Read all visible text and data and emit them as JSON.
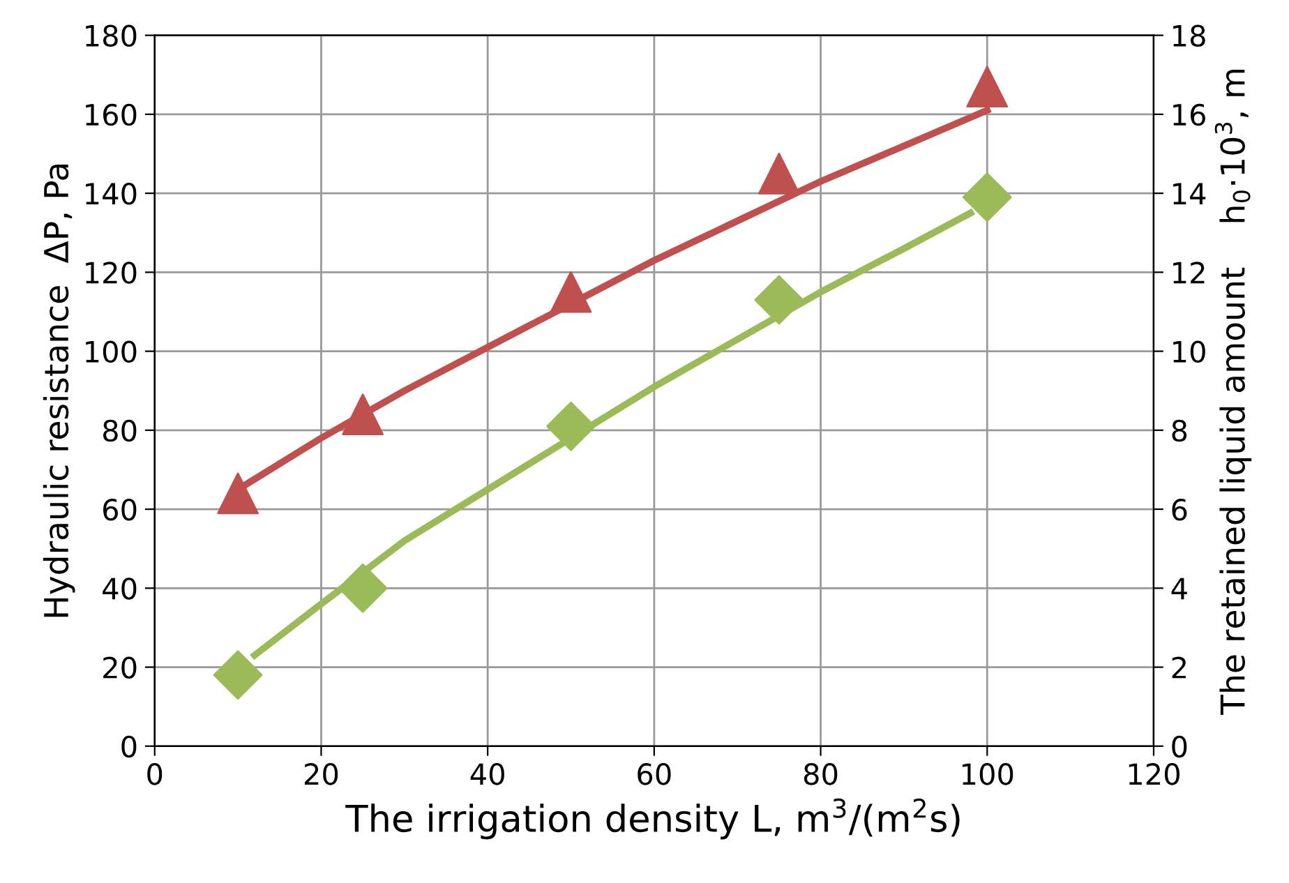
{
  "chart_data": {
    "type": "scatter",
    "xlabel": "The irrigation density L, m$^{3}$/(m$^{2}$s)",
    "ylabel": "Hydraulic resistance  ΔP, Pa",
    "y2label": "The retained liquid amount    h$_{0}$·10$^{3}$, m",
    "xlim": [
      0,
      120
    ],
    "xticks": [
      0,
      20,
      40,
      60,
      80,
      100,
      120
    ],
    "ylim": [
      0,
      180
    ],
    "yticks": [
      0,
      20,
      40,
      60,
      80,
      100,
      120,
      140,
      160,
      180
    ],
    "y2lim": [
      0,
      18
    ],
    "y2ticks": [
      0,
      2,
      4,
      6,
      8,
      10,
      12,
      14,
      16,
      18
    ],
    "grid": true,
    "series": [
      {
        "type": "line",
        "color": "#c0504d",
        "x": [
          10,
          20,
          30,
          40,
          50,
          60,
          70,
          80,
          90,
          100
        ],
        "values": [
          65,
          78,
          90,
          101,
          112,
          123,
          133,
          143,
          152,
          161
        ],
        "marker": "none"
      },
      {
        "type": "line",
        "color": "#9bbb59",
        "axis": "y2",
        "x": [
          12,
          20,
          30,
          40,
          50,
          60,
          70,
          80,
          90,
          98
        ],
        "values": [
          2.3,
          3.6,
          5.2,
          6.5,
          7.8,
          9.1,
          10.3,
          11.5,
          12.6,
          13.5
        ],
        "marker": "none"
      },
      {
        "type": "scatter",
        "color": "#c0504d",
        "x": [
          10,
          25,
          50,
          75,
          100
        ],
        "values": [
          64,
          84,
          115,
          145,
          167
        ],
        "marker": "triangle"
      },
      {
        "color": "#9bbb59",
        "axis": "y2",
        "x": [
          10,
          25,
          50,
          75,
          100
        ],
        "values": [
          1.8,
          4.0,
          8.1,
          11.3,
          13.9
        ],
        "marker": "diamond"
      }
    ]
  }
}
